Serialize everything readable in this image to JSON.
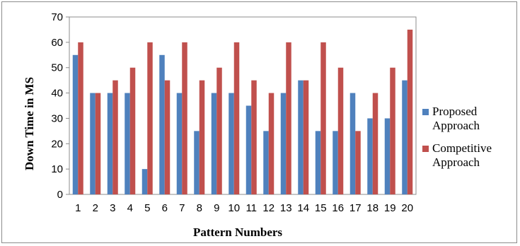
{
  "chart_data": {
    "type": "bar",
    "xlabel": "Pattern Numbers",
    "ylabel": "Down Time in MS",
    "ylim": [
      0,
      70
    ],
    "yticks": [
      0,
      10,
      20,
      30,
      40,
      50,
      60,
      70
    ],
    "grid": false,
    "legend_position": "right",
    "categories": [
      "1",
      "2",
      "3",
      "4",
      "5",
      "6",
      "7",
      "8",
      "9",
      "10",
      "11",
      "12",
      "13",
      "14",
      "15",
      "16",
      "17",
      "18",
      "19",
      "20"
    ],
    "series": [
      {
        "name": "Proposed Approach",
        "legend_lines": [
          "Proposed",
          "Approach"
        ],
        "color": "#4f81bd",
        "values": [
          55,
          40,
          40,
          40,
          10,
          55,
          40,
          25,
          40,
          40,
          35,
          25,
          40,
          45,
          25,
          25,
          40,
          30,
          30,
          45
        ]
      },
      {
        "name": "Competitive Approach",
        "legend_lines": [
          "Competitive",
          "Approach"
        ],
        "color": "#c0504d",
        "values": [
          60,
          40,
          45,
          50,
          60,
          45,
          60,
          45,
          50,
          60,
          45,
          40,
          60,
          45,
          60,
          50,
          25,
          40,
          50,
          65
        ]
      }
    ]
  }
}
